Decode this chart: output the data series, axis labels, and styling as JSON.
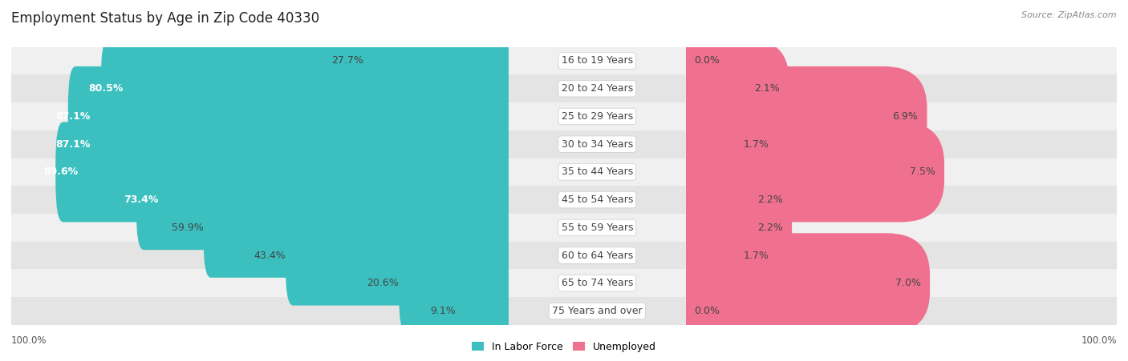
{
  "title": "Employment Status by Age in Zip Code 40330",
  "source": "Source: ZipAtlas.com",
  "categories": [
    "16 to 19 Years",
    "20 to 24 Years",
    "25 to 29 Years",
    "30 to 34 Years",
    "35 to 44 Years",
    "45 to 54 Years",
    "55 to 59 Years",
    "60 to 64 Years",
    "65 to 74 Years",
    "75 Years and over"
  ],
  "labor_force": [
    27.7,
    80.5,
    87.1,
    87.1,
    89.6,
    73.4,
    59.9,
    43.4,
    20.6,
    9.1
  ],
  "unemployed": [
    0.0,
    2.1,
    6.9,
    1.7,
    7.5,
    2.2,
    2.2,
    1.7,
    7.0,
    0.0
  ],
  "labor_force_color": "#3bbfbf",
  "unemployed_color": "#f07090",
  "row_bg_even": "#f0f0f0",
  "row_bg_odd": "#e4e4e4",
  "label_white": "#ffffff",
  "label_dark": "#444444",
  "legend_labor": "In Labor Force",
  "legend_unemployed": "Unemployed",
  "lf_threshold": 60.0,
  "bar_height": 0.6,
  "title_fontsize": 12,
  "label_fontsize": 9,
  "cat_fontsize": 9,
  "tick_fontsize": 8.5,
  "source_fontsize": 8
}
